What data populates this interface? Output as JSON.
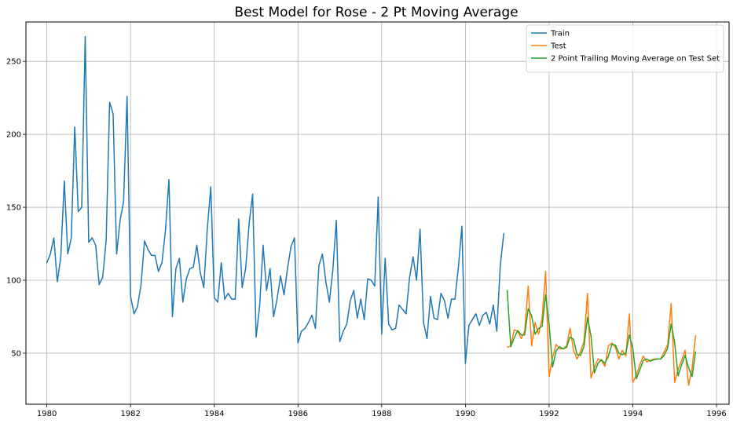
{
  "chart_data": {
    "type": "line",
    "title": "Best Model for Rose - 2 Pt Moving Average",
    "xlabel": "",
    "ylabel": "",
    "xlim": [
      1979.5,
      1996.3
    ],
    "ylim": [
      15,
      277
    ],
    "x_ticks": [
      "1980",
      "1982",
      "1984",
      "1986",
      "1988",
      "1990",
      "1992",
      "1994",
      "1996"
    ],
    "y_ticks": [
      "50",
      "100",
      "150",
      "200",
      "250"
    ],
    "grid": true,
    "legend_position": "top-right",
    "series": [
      {
        "name": "Train",
        "color": "#1f77b4",
        "x_start": 1980.0,
        "x_step": 0.0833333,
        "values": [
          112,
          118,
          129,
          99,
          116,
          168,
          118,
          129,
          205,
          147,
          150,
          267,
          126,
          129,
          124,
          97,
          102,
          127,
          222,
          214,
          118,
          141,
          154,
          226,
          89,
          77,
          82,
          97,
          127,
          121,
          117,
          117,
          106,
          112,
          134,
          169,
          75,
          108,
          115,
          85,
          101,
          108,
          109,
          124,
          105,
          95,
          135,
          164,
          88,
          85,
          112,
          87,
          91,
          87,
          87,
          142,
          95,
          108,
          139,
          159,
          61,
          82,
          124,
          93,
          108,
          75,
          87,
          103,
          90,
          108,
          123,
          129,
          57,
          65,
          67,
          71,
          76,
          67,
          110,
          118,
          99,
          85,
          107,
          141,
          58,
          65,
          70,
          86,
          93,
          74,
          87,
          73,
          101,
          100,
          96,
          157,
          63,
          115,
          70,
          66,
          67,
          83,
          80,
          77,
          102,
          116,
          100,
          135,
          71,
          60,
          89,
          74,
          73,
          91,
          86,
          74,
          87,
          87,
          109,
          137,
          43,
          69,
          73,
          77,
          69,
          76,
          78,
          70,
          83,
          65,
          110,
          132
        ]
      },
      {
        "name": "Test",
        "color": "#ff7f0e",
        "x_start": 1991.0,
        "x_step": 0.0833333,
        "values": [
          54,
          55,
          66,
          65,
          60,
          65,
          96,
          55,
          71,
          63,
          74,
          106,
          34,
          47,
          56,
          53,
          53,
          55,
          67,
          52,
          46,
          51,
          58,
          91,
          33,
          40,
          46,
          45,
          41,
          55,
          57,
          54,
          46,
          52,
          48,
          77,
          30,
          35,
          42,
          48,
          44,
          45,
          46,
          46,
          46,
          51,
          56,
          84,
          30,
          39,
          45,
          52,
          28,
          40,
          62
        ]
      },
      {
        "name": "2 Point Trailing Moving Average on Test Set",
        "color": "#2ca02c",
        "x_start": 1991.0,
        "x_step": 0.0833333,
        "values": [
          93,
          54.5,
          60.5,
          65.5,
          62.5,
          62.5,
          80.5,
          75.5,
          63,
          67,
          68.5,
          90,
          70,
          40.5,
          51.5,
          54.5,
          53,
          54,
          61,
          59.5,
          49,
          48.5,
          54.5,
          74.5,
          62,
          36.5,
          43,
          45.5,
          43,
          48,
          56,
          55.5,
          50,
          49,
          50,
          62.5,
          53.5,
          32.5,
          38.5,
          45,
          46,
          44.5,
          45.5,
          46,
          46,
          48.5,
          53.5,
          70,
          57,
          34.5,
          42,
          48.5,
          40,
          34,
          51
        ]
      }
    ]
  }
}
